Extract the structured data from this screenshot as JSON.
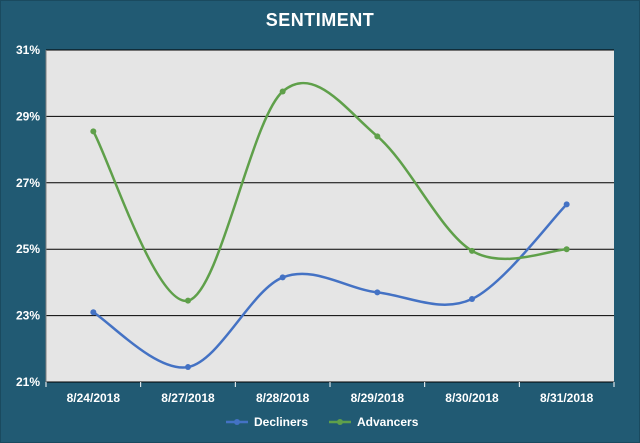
{
  "chart_data": {
    "type": "line",
    "title": "SENTIMENT",
    "xlabel": "",
    "ylabel": "",
    "categories": [
      "8/24/2018",
      "8/27/2018",
      "8/28/2018",
      "8/29/2018",
      "8/30/2018",
      "8/31/2018"
    ],
    "yticks": [
      "31%",
      "29%",
      "27%",
      "25%",
      "23%",
      "21%"
    ],
    "ylim": [
      21,
      31
    ],
    "grid": true,
    "legend_position": "bottom",
    "series": [
      {
        "name": "Decliners",
        "color": "#4472c4",
        "values": [
          23.1,
          21.45,
          24.15,
          23.7,
          23.5,
          26.35
        ]
      },
      {
        "name": "Advancers",
        "color": "#5fa04a",
        "values": [
          28.55,
          23.45,
          29.75,
          28.4,
          24.95,
          25.0
        ]
      }
    ],
    "colors": {
      "background": "#215a73",
      "plot_area": "#e5e5e5",
      "gridline": "#000000"
    }
  }
}
